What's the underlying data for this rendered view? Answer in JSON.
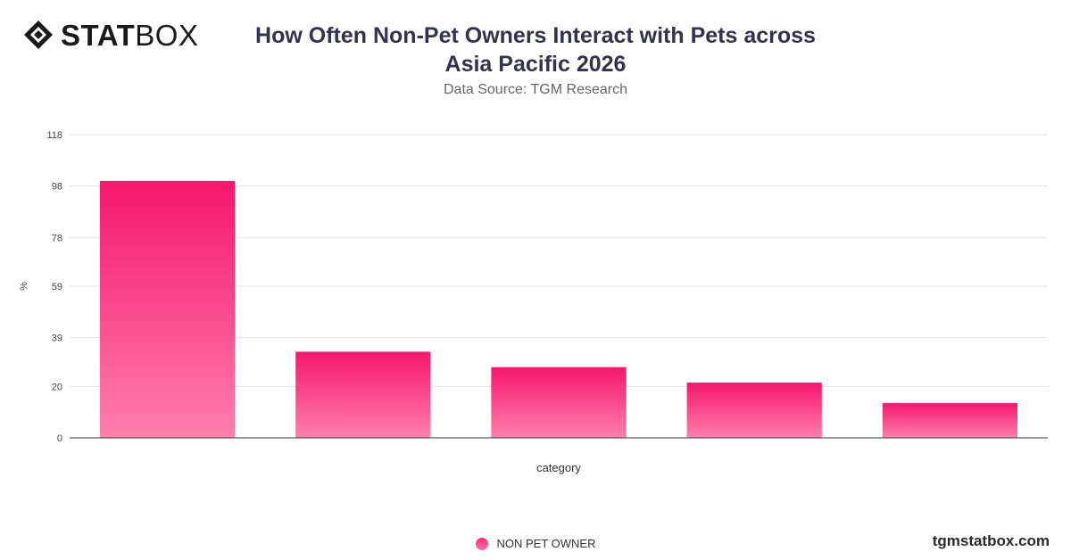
{
  "brand": {
    "logo_bold": "STAT",
    "logo_light": "BOX",
    "footer_site": "tgmstatbox.com"
  },
  "header": {
    "title_line1": "How Often Non-Pet Owners Interact with Pets across",
    "title_line2": "Asia Pacific 2026",
    "subtitle": "Data Source: TGM Research"
  },
  "colors": {
    "bar_top": "#f5176b",
    "bar_bottom": "#ff7fab",
    "grid": "#e3e3e3",
    "axis": "#333333"
  },
  "chart_data": {
    "type": "bar",
    "title": "How Often Non-Pet Owners Interact with Pets across Asia Pacific 2026",
    "subtitle": "Data Source: TGM Research",
    "xlabel": "category",
    "ylabel": "%",
    "ylim": [
      0,
      118
    ],
    "yticks": [
      0,
      20,
      39,
      59,
      78,
      98,
      118
    ],
    "categories": [
      "",
      "",
      "",
      "",
      ""
    ],
    "series": [
      {
        "name": "NON PET OWNER",
        "values": [
          100,
          33.5,
          27.5,
          21.5,
          13.5
        ]
      }
    ],
    "grid": true,
    "legend_position": "bottom-center"
  }
}
